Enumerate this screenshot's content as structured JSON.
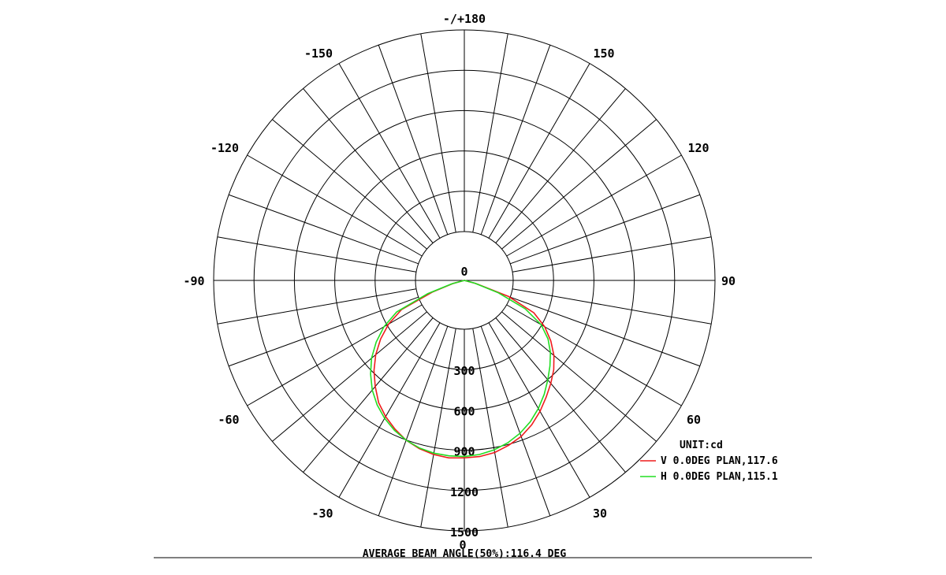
{
  "chart_data": {
    "type": "polar",
    "unit_label": "UNIT:cd",
    "radial_ticks": [
      "0",
      "300",
      "600",
      "900",
      "1200",
      "1500"
    ],
    "rmax": 1800,
    "angle_labels": [
      {
        "deg": 0,
        "text": "0"
      },
      {
        "deg": 30,
        "text": "30"
      },
      {
        "deg": 60,
        "text": "60"
      },
      {
        "deg": 90,
        "text": "90"
      },
      {
        "deg": 120,
        "text": "120"
      },
      {
        "deg": 150,
        "text": "150"
      },
      {
        "deg": 180,
        "text": "-/+180"
      },
      {
        "deg": -150,
        "text": "-150"
      },
      {
        "deg": -120,
        "text": "-120"
      },
      {
        "deg": -90,
        "text": "-90"
      },
      {
        "deg": -60,
        "text": "-60"
      },
      {
        "deg": -30,
        "text": "-30"
      }
    ],
    "series": [
      {
        "name": "V 0.0DEG PLAN,117.6",
        "color": "#ee1c1c",
        "points": [
          [
            -75,
            85
          ],
          [
            -70,
            250
          ],
          [
            -65,
            515
          ],
          [
            -60,
            650
          ],
          [
            -55,
            760
          ],
          [
            -50,
            860
          ],
          [
            -45,
            950
          ],
          [
            -40,
            1030
          ],
          [
            -35,
            1110
          ],
          [
            -30,
            1170
          ],
          [
            -25,
            1220
          ],
          [
            -20,
            1265
          ],
          [
            -15,
            1295
          ],
          [
            -10,
            1315
          ],
          [
            -5,
            1325
          ],
          [
            0,
            1320
          ],
          [
            5,
            1315
          ],
          [
            10,
            1300
          ],
          [
            15,
            1270
          ],
          [
            20,
            1235
          ],
          [
            25,
            1185
          ],
          [
            30,
            1125
          ],
          [
            35,
            1060
          ],
          [
            40,
            1000
          ],
          [
            45,
            940
          ],
          [
            50,
            870
          ],
          [
            55,
            785
          ],
          [
            60,
            690
          ],
          [
            65,
            570
          ],
          [
            70,
            350
          ],
          [
            75,
            90
          ]
        ]
      },
      {
        "name": "H 0.0DEG PLAN,115.1",
        "color": "#22dd22",
        "points": [
          [
            -75,
            95
          ],
          [
            -70,
            290
          ],
          [
            -65,
            555
          ],
          [
            -60,
            690
          ],
          [
            -55,
            800
          ],
          [
            -50,
            900
          ],
          [
            -45,
            985
          ],
          [
            -40,
            1065
          ],
          [
            -35,
            1130
          ],
          [
            -30,
            1185
          ],
          [
            -25,
            1230
          ],
          [
            -20,
            1265
          ],
          [
            -15,
            1290
          ],
          [
            -10,
            1305
          ],
          [
            -5,
            1310
          ],
          [
            0,
            1310
          ],
          [
            5,
            1300
          ],
          [
            10,
            1280
          ],
          [
            15,
            1250
          ],
          [
            20,
            1210
          ],
          [
            25,
            1160
          ],
          [
            30,
            1100
          ],
          [
            35,
            1035
          ],
          [
            40,
            965
          ],
          [
            45,
            900
          ],
          [
            50,
            835
          ],
          [
            55,
            760
          ],
          [
            60,
            660
          ],
          [
            65,
            500
          ],
          [
            70,
            270
          ],
          [
            75,
            80
          ]
        ]
      }
    ],
    "footer": "AVERAGE BEAM ANGLE(50%):116.4 DEG"
  }
}
